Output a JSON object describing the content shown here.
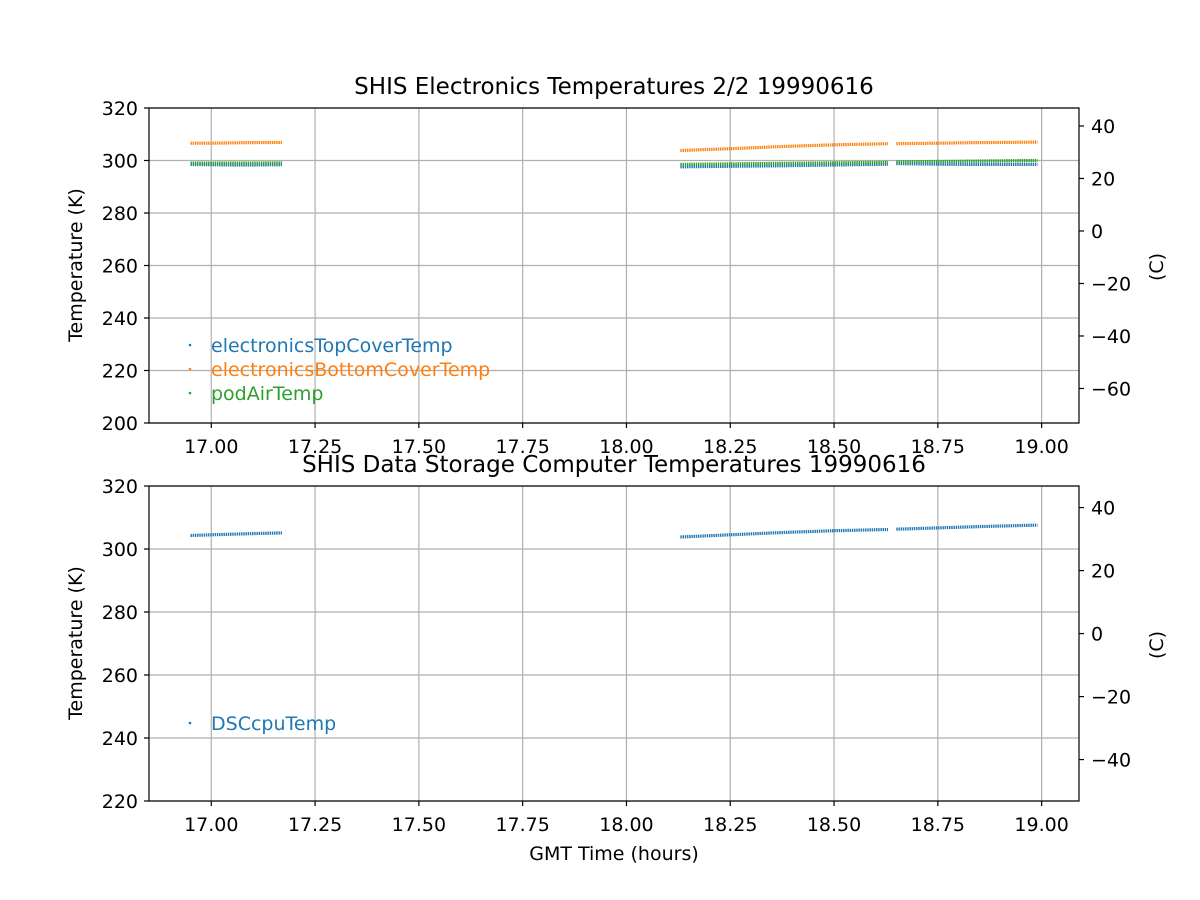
{
  "chart_data": [
    {
      "type": "scatter",
      "title": "SHIS Electronics Temperatures 2/2 19990616",
      "xlabel": "",
      "ylabel": "Temperature (K)",
      "y2label": "(C)",
      "xlim": [
        16.85,
        19.09
      ],
      "ylim": [
        200,
        320
      ],
      "xticks": [
        "17.00",
        "17.25",
        "17.50",
        "17.75",
        "18.00",
        "18.25",
        "18.50",
        "18.75",
        "19.00"
      ],
      "yticks": [
        "200",
        "220",
        "240",
        "260",
        "280",
        "300",
        "320"
      ],
      "y2ticks": [
        "−60",
        "−40",
        "−20",
        "0",
        "20",
        "40"
      ],
      "grid": true,
      "legend_position": "lower-left",
      "series": [
        {
          "name": "electronicsTopCoverTemp",
          "color": "#1f77b4",
          "segments": [
            {
              "x": [
                16.95,
                17.0,
                17.05,
                17.1,
                17.17
              ],
              "y": [
                298.5,
                298.4,
                298.3,
                298.3,
                298.4
              ]
            },
            {
              "x": [
                18.13,
                18.25,
                18.37,
                18.5,
                18.63
              ],
              "y": [
                297.6,
                297.8,
                298.0,
                298.3,
                298.6
              ]
            },
            {
              "x": [
                18.65,
                18.75,
                18.85,
                18.99
              ],
              "y": [
                298.8,
                298.6,
                298.5,
                298.5
              ]
            }
          ]
        },
        {
          "name": "electronicsBottomCoverTemp",
          "color": "#ff7f0e",
          "segments": [
            {
              "x": [
                16.95,
                17.0,
                17.05,
                17.1,
                17.17
              ],
              "y": [
                306.6,
                306.6,
                306.7,
                306.8,
                306.9
              ]
            },
            {
              "x": [
                18.13,
                18.25,
                18.37,
                18.5,
                18.63
              ],
              "y": [
                303.8,
                304.5,
                305.3,
                306.0,
                306.4
              ]
            },
            {
              "x": [
                18.65,
                18.75,
                18.85,
                18.99
              ],
              "y": [
                306.4,
                306.6,
                306.8,
                307.0
              ]
            }
          ]
        },
        {
          "name": "podAirTemp",
          "color": "#2ca02c",
          "segments": [
            {
              "x": [
                16.95,
                17.0,
                17.05,
                17.1,
                17.17
              ],
              "y": [
                299.0,
                299.0,
                299.0,
                299.0,
                299.1
              ]
            },
            {
              "x": [
                18.13,
                18.25,
                18.37,
                18.5,
                18.63
              ],
              "y": [
                298.5,
                298.7,
                298.9,
                299.1,
                299.3
              ]
            },
            {
              "x": [
                18.65,
                18.75,
                18.85,
                18.99
              ],
              "y": [
                299.5,
                299.6,
                299.8,
                300.0
              ]
            }
          ]
        }
      ]
    },
    {
      "type": "scatter",
      "title": "SHIS Data Storage Computer Temperatures 19990616",
      "xlabel": "GMT Time (hours)",
      "ylabel": "Temperature (K)",
      "y2label": "(C)",
      "xlim": [
        16.85,
        19.09
      ],
      "ylim": [
        220,
        320
      ],
      "xticks": [
        "17.00",
        "17.25",
        "17.50",
        "17.75",
        "18.00",
        "18.25",
        "18.50",
        "18.75",
        "19.00"
      ],
      "yticks": [
        "220",
        "240",
        "260",
        "280",
        "300",
        "320"
      ],
      "y2ticks": [
        "−40",
        "−20",
        "0",
        "20",
        "40"
      ],
      "grid": true,
      "legend_position": "lower-left",
      "series": [
        {
          "name": "DSCcpuTemp",
          "color": "#1f77b4",
          "segments": [
            {
              "x": [
                16.95,
                17.0,
                17.05,
                17.1,
                17.17
              ],
              "y": [
                304.3,
                304.5,
                304.7,
                304.9,
                305.1
              ]
            },
            {
              "x": [
                18.13,
                18.25,
                18.37,
                18.5,
                18.63
              ],
              "y": [
                303.8,
                304.5,
                305.2,
                305.8,
                306.2
              ]
            },
            {
              "x": [
                18.65,
                18.75,
                18.85,
                18.99
              ],
              "y": [
                306.3,
                306.7,
                307.1,
                307.6
              ]
            }
          ]
        }
      ]
    }
  ]
}
